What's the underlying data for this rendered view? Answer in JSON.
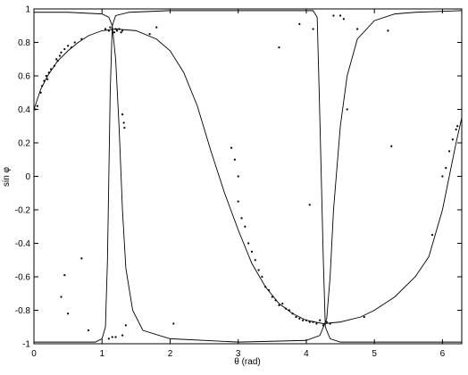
{
  "chart_data": {
    "type": "line",
    "xlabel": "θ (rad)",
    "ylabel": "sin φ",
    "xlim": [
      0,
      6.2832
    ],
    "ylim": [
      -1,
      1
    ],
    "xticks": [
      0,
      1,
      2,
      3,
      4,
      5,
      6
    ],
    "yticks": [
      -1,
      -0.8,
      -0.6,
      -0.4,
      -0.2,
      0,
      0.2,
      0.4,
      0.6,
      0.8,
      1
    ],
    "color": "#000000",
    "series": [
      {
        "x": [
          0,
          0.1,
          0.2,
          0.35,
          0.5,
          0.65,
          0.8,
          1.0,
          1.2,
          1.5,
          1.8,
          2.0,
          2.2,
          2.4,
          2.6,
          2.8,
          3.0,
          3.2,
          3.4,
          3.6,
          3.8,
          4.0,
          4.25,
          4.5,
          4.8,
          5.0,
          5.3,
          5.6,
          5.8,
          6.0,
          6.1,
          6.2,
          6.2832
        ],
        "values": [
          0.4,
          0.52,
          0.6,
          0.69,
          0.75,
          0.8,
          0.84,
          0.87,
          0.88,
          0.87,
          0.82,
          0.75,
          0.62,
          0.42,
          0.15,
          -0.1,
          -0.32,
          -0.52,
          -0.66,
          -0.76,
          -0.82,
          -0.86,
          -0.88,
          -0.87,
          -0.84,
          -0.8,
          -0.72,
          -0.6,
          -0.48,
          -0.2,
          0.0,
          0.2,
          0.35
        ]
      },
      {
        "x": [
          0,
          0.9,
          1.0,
          1.05,
          1.08,
          1.1,
          1.12,
          1.15,
          1.2,
          1.4,
          2.0,
          3.0,
          4.1,
          4.16,
          4.19,
          4.22,
          4.25,
          4.28,
          4.35,
          4.5,
          5.0,
          6.2832
        ],
        "values": [
          -0.99,
          -0.99,
          -0.97,
          -0.9,
          -0.5,
          0.0,
          0.5,
          0.9,
          0.96,
          0.98,
          0.99,
          0.99,
          0.99,
          0.95,
          0.5,
          0.0,
          -0.5,
          -0.9,
          -0.97,
          -0.99,
          -0.99,
          -0.99
        ]
      },
      {
        "x": [
          0,
          0.5,
          1.0,
          1.1,
          1.15,
          1.2,
          1.25,
          1.3,
          1.35,
          1.45,
          1.6,
          2.0,
          3.0,
          4.0,
          4.2,
          4.3,
          4.35,
          4.4,
          4.5,
          4.6,
          4.75,
          5.0,
          5.3,
          5.6,
          6.2832
        ],
        "values": [
          0.98,
          0.98,
          0.97,
          0.95,
          0.9,
          0.7,
          0.3,
          -0.2,
          -0.55,
          -0.8,
          -0.92,
          -0.97,
          -0.99,
          -0.98,
          -0.95,
          -0.85,
          -0.6,
          -0.2,
          0.3,
          0.6,
          0.82,
          0.93,
          0.97,
          0.98,
          0.99
        ]
      }
    ],
    "scatter": {
      "x": [
        0.02,
        0.05,
        0.1,
        0.12,
        0.15,
        0.18,
        0.2,
        0.22,
        0.25,
        0.3,
        0.33,
        0.35,
        0.38,
        0.4,
        0.45,
        0.5,
        0.55,
        0.6,
        0.7,
        1.05,
        1.1,
        1.12,
        1.15,
        1.18,
        1.2,
        1.22,
        1.25,
        1.28,
        1.3,
        1.7,
        1.8,
        2.9,
        2.95,
        3.0,
        3.05,
        3.1,
        3.15,
        3.2,
        3.25,
        3.3,
        3.35,
        3.4,
        3.45,
        3.5,
        3.55,
        3.6,
        3.65,
        3.7,
        3.75,
        3.8,
        3.85,
        3.9,
        3.95,
        4.0,
        4.05,
        4.1,
        4.15,
        4.2,
        4.25,
        4.3,
        4.35,
        6.0,
        6.05,
        6.1,
        6.15,
        6.2,
        6.22,
        0.45,
        0.4,
        0.5,
        0.7,
        0.8,
        1.1,
        1.15,
        1.2,
        1.3,
        1.35,
        1.3,
        1.32,
        1.33,
        2.05,
        3.6,
        3.9,
        4.05,
        4.1,
        4.4,
        4.5,
        4.55,
        4.6,
        4.75,
        4.85,
        5.2,
        5.25,
        5.85,
        3.0
      ],
      "y": [
        0.4,
        0.42,
        0.5,
        0.54,
        0.57,
        0.6,
        0.58,
        0.62,
        0.64,
        0.66,
        0.7,
        0.69,
        0.72,
        0.74,
        0.76,
        0.78,
        0.77,
        0.8,
        0.82,
        0.88,
        0.87,
        0.89,
        0.88,
        0.86,
        0.88,
        0.87,
        0.88,
        0.86,
        0.87,
        0.85,
        0.89,
        0.17,
        0.1,
        -0.15,
        -0.25,
        -0.3,
        -0.4,
        -0.45,
        -0.5,
        -0.56,
        -0.6,
        -0.66,
        -0.68,
        -0.72,
        -0.74,
        -0.77,
        -0.76,
        -0.79,
        -0.8,
        -0.82,
        -0.84,
        -0.85,
        -0.86,
        -0.86,
        -0.87,
        -0.87,
        -0.88,
        -0.86,
        -0.89,
        -0.87,
        -0.88,
        0.0,
        0.05,
        0.15,
        0.22,
        0.28,
        0.3,
        -0.59,
        -0.72,
        -0.82,
        -0.49,
        -0.92,
        -0.97,
        -0.96,
        -0.96,
        -0.95,
        -0.89,
        0.37,
        0.32,
        0.29,
        -0.88,
        0.77,
        0.91,
        -0.17,
        0.88,
        0.96,
        0.96,
        0.94,
        0.4,
        0.88,
        -0.84,
        0.87,
        0.18,
        -0.35,
        0.0
      ]
    }
  }
}
